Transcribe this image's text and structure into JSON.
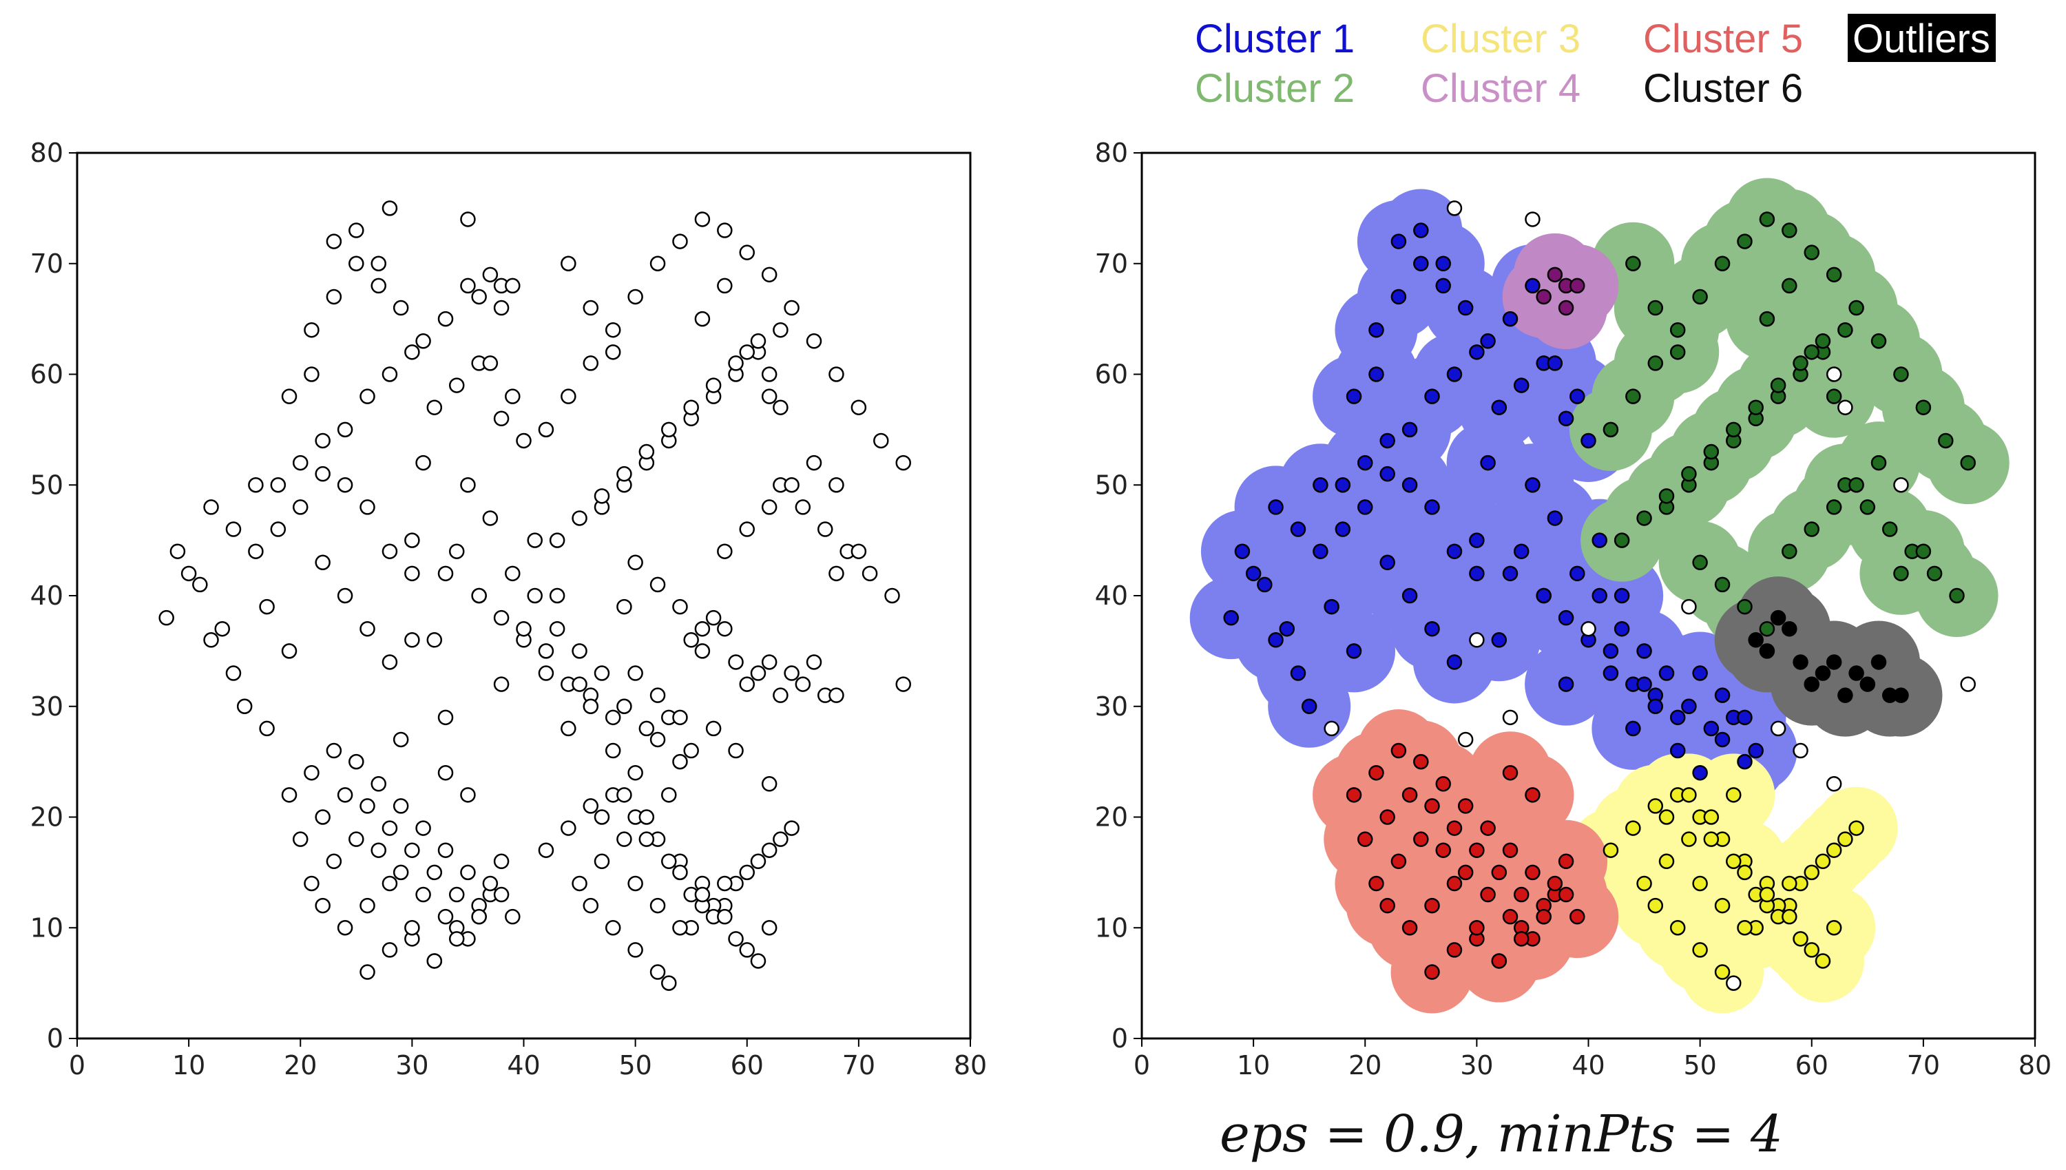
{
  "figure": {
    "caption": "eps = 0.9, minPts = 4"
  },
  "chart_data": [
    {
      "type": "scatter",
      "title": "",
      "xlabel": "",
      "ylabel": "",
      "xlim": [
        0,
        80
      ],
      "ylim": [
        0,
        80
      ],
      "xticks": [
        "0",
        "10",
        "20",
        "30",
        "40",
        "50",
        "60",
        "70",
        "80"
      ],
      "yticks": [
        "0",
        "10",
        "20",
        "30",
        "40",
        "50",
        "60",
        "70",
        "80"
      ],
      "grid": false,
      "marker_fill": "#ffffff",
      "marker_edge": "#000000",
      "note": "unlabeled raw points (approximate sample of the displayed point cloud)"
    },
    {
      "type": "scatter",
      "title": "",
      "xlabel": "",
      "ylabel": "",
      "xlim": [
        0,
        80
      ],
      "ylim": [
        0,
        80
      ],
      "xticks": [
        "0",
        "10",
        "20",
        "30",
        "40",
        "50",
        "60",
        "70",
        "80"
      ],
      "yticks": [
        "0",
        "10",
        "20",
        "30",
        "40",
        "50",
        "60",
        "70",
        "80"
      ],
      "grid": false,
      "legend_placement": "top-right (above plot)",
      "caption": "eps = 0.9, minPts = 4",
      "series": [
        {
          "name": "Cluster 1",
          "color": "#1010d0",
          "region": "#7b80ee",
          "x": [
            8,
            10,
            12,
            14,
            16,
            18,
            20,
            22,
            24,
            26,
            28,
            30,
            32,
            34,
            36,
            38,
            40,
            21,
            23,
            25,
            27,
            29,
            31,
            33,
            35,
            37,
            39,
            41,
            43,
            45,
            47,
            49,
            51,
            53,
            55,
            9,
            11,
            13,
            15,
            17,
            19,
            22,
            24,
            26,
            28,
            30,
            33,
            36,
            38,
            42,
            44,
            46,
            48,
            52,
            54,
            18,
            20,
            22,
            24,
            26,
            28,
            23,
            25,
            27,
            21,
            19,
            12,
            14,
            16,
            30,
            32,
            34,
            36,
            38,
            40,
            42,
            44,
            46,
            50,
            52,
            54,
            31,
            35,
            37,
            39,
            41,
            43,
            45,
            48,
            50
          ],
          "y": [
            38,
            42,
            36,
            33,
            44,
            46,
            48,
            51,
            55,
            58,
            60,
            62,
            57,
            59,
            61,
            56,
            54,
            64,
            67,
            70,
            68,
            66,
            63,
            65,
            68,
            61,
            58,
            45,
            40,
            35,
            33,
            30,
            28,
            29,
            26,
            44,
            41,
            37,
            30,
            39,
            35,
            43,
            40,
            37,
            34,
            45,
            42,
            40,
            38,
            35,
            32,
            31,
            29,
            27,
            25,
            50,
            52,
            54,
            50,
            48,
            44,
            72,
            73,
            70,
            60,
            58,
            48,
            46,
            50,
            42,
            36,
            44,
            40,
            32,
            36,
            33,
            28,
            30,
            33,
            31,
            29,
            52,
            50,
            47,
            42,
            40,
            37,
            32,
            26,
            24
          ]
        },
        {
          "name": "Cluster 2",
          "color": "#1f6b1f",
          "region": "#8fbf88",
          "x": [
            42,
            44,
            46,
            48,
            50,
            52,
            54,
            56,
            58,
            60,
            62,
            64,
            66,
            68,
            70,
            72,
            74,
            47,
            49,
            51,
            53,
            55,
            57,
            59,
            61,
            63,
            43,
            45,
            47,
            49,
            51,
            53,
            55,
            57,
            59,
            61,
            63,
            65,
            67,
            69,
            71,
            73,
            50,
            52,
            54,
            56,
            58,
            60,
            62,
            64,
            66,
            68,
            70,
            48,
            46,
            44,
            56,
            58,
            60,
            62
          ],
          "y": [
            55,
            58,
            61,
            64,
            67,
            70,
            72,
            74,
            73,
            71,
            69,
            66,
            63,
            60,
            57,
            54,
            52,
            48,
            50,
            52,
            54,
            56,
            58,
            60,
            62,
            64,
            45,
            47,
            49,
            51,
            53,
            55,
            57,
            59,
            61,
            63,
            50,
            48,
            46,
            44,
            42,
            40,
            43,
            41,
            39,
            37,
            44,
            46,
            48,
            50,
            52,
            42,
            44,
            62,
            66,
            70,
            65,
            68,
            62,
            58
          ]
        },
        {
          "name": "Cluster 3",
          "color": "#eeee22",
          "region": "#fdfb9e",
          "x": [
            42,
            44,
            46,
            48,
            50,
            52,
            54,
            56,
            58,
            60,
            62,
            64,
            45,
            47,
            49,
            51,
            53,
            55,
            57,
            59,
            61,
            63,
            46,
            48,
            50,
            52,
            54,
            56,
            58,
            60,
            62,
            47,
            49,
            51,
            53,
            55,
            57,
            59,
            61,
            50,
            52,
            54,
            56,
            58
          ],
          "y": [
            17,
            19,
            21,
            22,
            20,
            18,
            16,
            14,
            12,
            15,
            17,
            19,
            14,
            16,
            18,
            20,
            22,
            10,
            12,
            14,
            16,
            18,
            12,
            10,
            8,
            6,
            10,
            12,
            14,
            8,
            10,
            20,
            22,
            18,
            16,
            13,
            11,
            9,
            7,
            14,
            12,
            15,
            13,
            11
          ]
        },
        {
          "name": "Cluster 4",
          "color": "#7a1470",
          "region": "#c088c4",
          "x": [
            36,
            37,
            38,
            39,
            38
          ],
          "y": [
            67,
            69,
            68,
            68,
            66
          ]
        },
        {
          "name": "Cluster 5",
          "color": "#d01414",
          "region": "#ef8e80",
          "x": [
            19,
            21,
            23,
            25,
            27,
            29,
            31,
            33,
            35,
            37,
            39,
            20,
            22,
            24,
            26,
            28,
            30,
            32,
            34,
            36,
            38,
            21,
            23,
            25,
            27,
            29,
            31,
            33,
            35,
            37,
            22,
            24,
            26,
            28,
            30,
            32,
            34,
            36,
            26,
            28,
            30,
            32,
            34,
            36,
            38,
            33,
            35
          ],
          "y": [
            22,
            24,
            26,
            25,
            23,
            21,
            19,
            17,
            15,
            13,
            11,
            18,
            20,
            22,
            21,
            19,
            17,
            15,
            13,
            11,
            16,
            14,
            16,
            18,
            17,
            15,
            13,
            11,
            9,
            14,
            12,
            10,
            12,
            14,
            9,
            7,
            10,
            12,
            6,
            8,
            10,
            7,
            9,
            11,
            13,
            24,
            22
          ]
        },
        {
          "name": "Cluster 6",
          "color": "#000000",
          "region": "#6e6e6e",
          "x": [
            55,
            56,
            57,
            58,
            59,
            60,
            61,
            62,
            63,
            64,
            65,
            66,
            67,
            68
          ],
          "y": [
            36,
            35,
            38,
            37,
            34,
            32,
            33,
            34,
            31,
            33,
            32,
            34,
            31,
            31
          ]
        },
        {
          "name": "Outliers",
          "color": "#ffffff",
          "region": "",
          "x": [
            28,
            35,
            62,
            63,
            68,
            74,
            17,
            30,
            33,
            57,
            59,
            62,
            40,
            49,
            53,
            29
          ],
          "y": [
            75,
            74,
            60,
            57,
            50,
            32,
            28,
            36,
            29,
            28,
            26,
            23,
            37,
            39,
            5,
            27
          ]
        }
      ]
    }
  ],
  "legend": [
    {
      "label": "Cluster 1",
      "color": "#1010d0",
      "boxed": false
    },
    {
      "label": "Cluster 2",
      "color": "#7fb86f",
      "boxed": false
    },
    {
      "label": "Cluster 3",
      "color": "#f5e47a",
      "boxed": false
    },
    {
      "label": "Cluster 4",
      "color": "#c98fc6",
      "boxed": false
    },
    {
      "label": "Cluster 5",
      "color": "#e06060",
      "boxed": false
    },
    {
      "label": "Cluster 6",
      "color": "#111111",
      "boxed": false
    },
    {
      "label": "Outliers",
      "color": "#ffffff",
      "boxed": true
    }
  ]
}
